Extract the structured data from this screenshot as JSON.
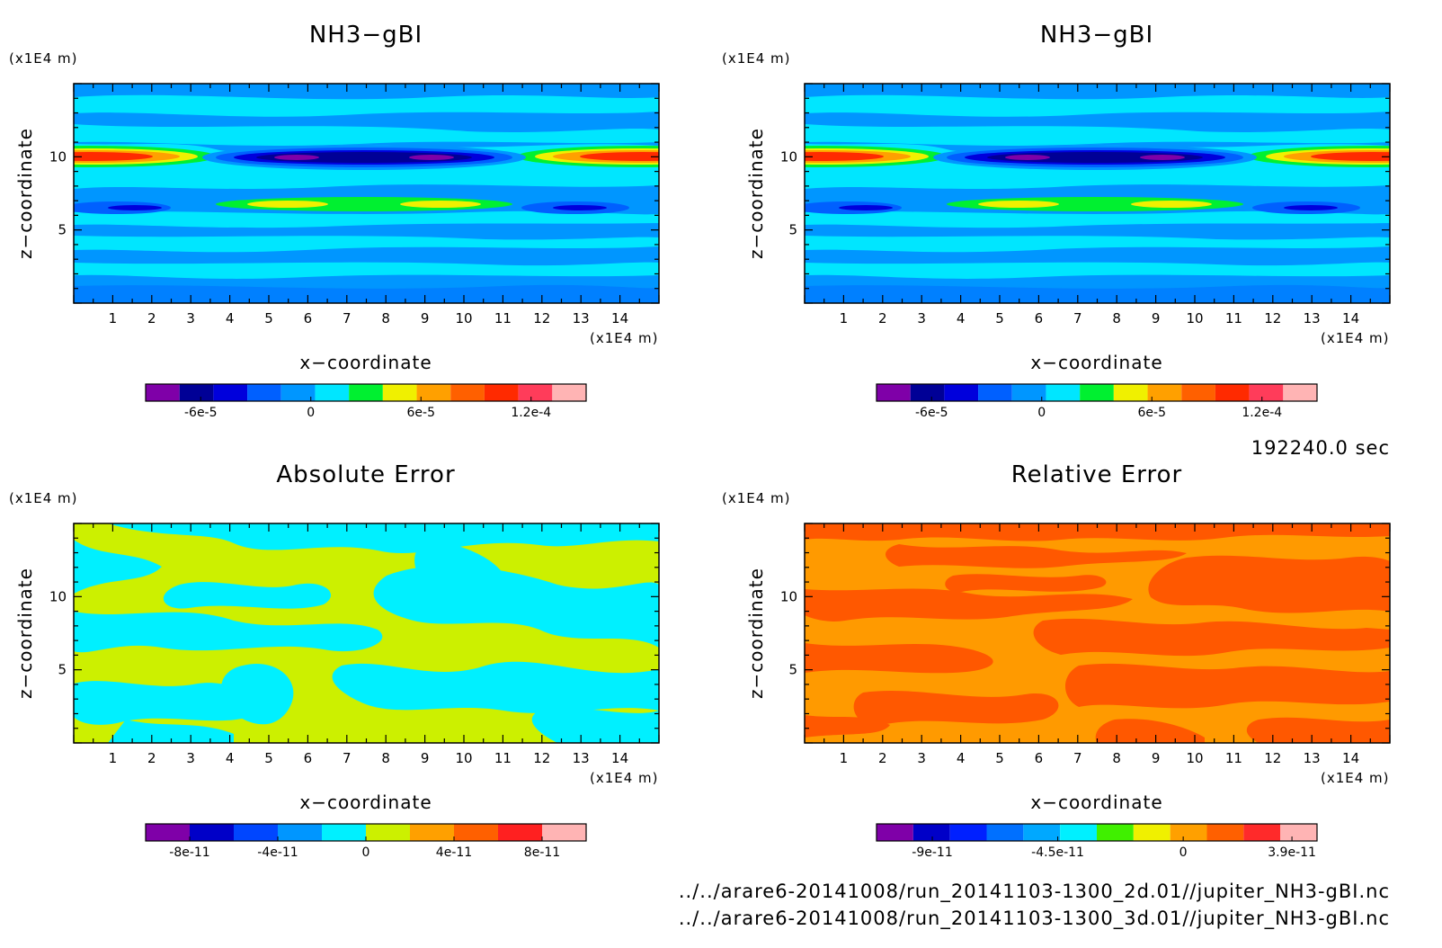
{
  "chart_data": [
    {
      "type": "heatmap",
      "title": "NH3−gBI",
      "xlabel": "x−coordinate",
      "ylabel": "z−coordinate",
      "x_unit": "(x1E4 m)",
      "y_unit": "(x1E4 m)",
      "xlim": [
        0,
        15
      ],
      "ylim": [
        0,
        15
      ],
      "x_ticks": [
        "1",
        "2",
        "3",
        "4",
        "5",
        "6",
        "7",
        "8",
        "9",
        "10",
        "11",
        "12",
        "13",
        "14"
      ],
      "y_ticks": [
        "5",
        "10"
      ],
      "colorbar": {
        "levels": [
          -9e-05,
          -7.5e-05,
          -6e-05,
          -4.5e-05,
          -3e-05,
          -1.5e-05,
          0,
          1.5e-05,
          3e-05,
          4.5e-05,
          6e-05,
          7.5e-05,
          9e-05,
          0.000105,
          0.00012,
          0.000135,
          0.00015
        ],
        "colors": [
          "#7f00a8",
          "#000096",
          "#0000dc",
          "#0060ff",
          "#0096ff",
          "#00e6ff",
          "#00f030",
          "#f0f000",
          "#ffa000",
          "#ff6000",
          "#ff2a00",
          "#ff3c5a",
          "#ffb4b4"
        ],
        "tick_labels": [
          "-6e-5",
          "0",
          "6e-5",
          "1.2e-4"
        ]
      },
      "background_level": 8e-06,
      "features": [
        {
          "x": 1.0,
          "z": 10.0,
          "value": 0.00013,
          "note": "left high band"
        },
        {
          "x": 14.0,
          "z": 10.0,
          "value": 0.00013,
          "note": "right high band"
        },
        {
          "x": 7.5,
          "z": 10.0,
          "value": -8.5e-05,
          "note": "central low band"
        },
        {
          "x": 7.5,
          "z": 6.6,
          "value": 6e-05,
          "note": "central high band"
        },
        {
          "x": 2.0,
          "z": 6.4,
          "value": -5e-05,
          "note": "left low band"
        },
        {
          "x": 13.0,
          "z": 6.4,
          "value": -5e-05,
          "note": "right low band"
        }
      ]
    },
    {
      "type": "heatmap",
      "title": "NH3−gBI",
      "xlabel": "x−coordinate",
      "ylabel": "z−coordinate",
      "x_unit": "(x1E4 m)",
      "y_unit": "(x1E4 m)",
      "xlim": [
        0,
        15
      ],
      "ylim": [
        0,
        15
      ],
      "x_ticks": [
        "1",
        "2",
        "3",
        "4",
        "5",
        "6",
        "7",
        "8",
        "9",
        "10",
        "11",
        "12",
        "13",
        "14"
      ],
      "y_ticks": [
        "5",
        "10"
      ],
      "colorbar": {
        "levels": [
          -9e-05,
          -7.5e-05,
          -6e-05,
          -4.5e-05,
          -3e-05,
          -1.5e-05,
          0,
          1.5e-05,
          3e-05,
          4.5e-05,
          6e-05,
          7.5e-05,
          9e-05,
          0.000105,
          0.00012,
          0.000135,
          0.00015
        ],
        "colors": [
          "#7f00a8",
          "#000096",
          "#0000dc",
          "#0060ff",
          "#0096ff",
          "#00e6ff",
          "#00f030",
          "#f0f000",
          "#ffa000",
          "#ff6000",
          "#ff2a00",
          "#ff3c5a",
          "#ffb4b4"
        ],
        "tick_labels": [
          "-6e-5",
          "0",
          "6e-5",
          "1.2e-4"
        ]
      },
      "background_level": 8e-06,
      "features": [
        {
          "x": 1.0,
          "z": 10.0,
          "value": 0.00013
        },
        {
          "x": 14.0,
          "z": 10.0,
          "value": 0.00013
        },
        {
          "x": 7.5,
          "z": 10.0,
          "value": -8.5e-05
        },
        {
          "x": 7.5,
          "z": 6.6,
          "value": 6e-05
        },
        {
          "x": 2.0,
          "z": 6.4,
          "value": -5e-05
        },
        {
          "x": 13.0,
          "z": 6.4,
          "value": -5e-05
        }
      ]
    },
    {
      "type": "heatmap",
      "title": "Absolute Error",
      "xlabel": "x−coordinate",
      "ylabel": "z−coordinate",
      "x_unit": "(x1E4 m)",
      "y_unit": "(x1E4 m)",
      "xlim": [
        0,
        15
      ],
      "ylim": [
        0,
        15
      ],
      "x_ticks": [
        "1",
        "2",
        "3",
        "4",
        "5",
        "6",
        "7",
        "8",
        "9",
        "10",
        "11",
        "12",
        "13",
        "14"
      ],
      "y_ticks": [
        "5",
        "10"
      ],
      "colorbar": {
        "levels": [
          -1e-10,
          -8e-11,
          -6e-11,
          -4e-11,
          -2e-11,
          0,
          2e-11,
          4e-11,
          6e-11,
          8e-11,
          1e-10
        ],
        "colors": [
          "#7f00a8",
          "#0000c8",
          "#0046ff",
          "#0096ff",
          "#00f0ff",
          "#ccf000",
          "#ffa000",
          "#ff6000",
          "#ff2020",
          "#ffb4b4"
        ],
        "tick_labels": [
          "-8e-11",
          "-4e-11",
          "0",
          "4e-11",
          "8e-11"
        ]
      },
      "values_present": [
        "cyan (-2e-11 to 0)",
        "yellow-green (0 to 2e-11)"
      ]
    },
    {
      "type": "heatmap",
      "title": "Relative Error",
      "xlabel": "x−coordinate",
      "ylabel": "z−coordinate",
      "x_unit": "(x1E4 m)",
      "y_unit": "(x1E4 m)",
      "xlim": [
        0,
        15
      ],
      "ylim": [
        0,
        15
      ],
      "x_ticks": [
        "1",
        "2",
        "3",
        "4",
        "5",
        "6",
        "7",
        "8",
        "9",
        "10",
        "11",
        "12",
        "13",
        "14"
      ],
      "y_ticks": [
        "5",
        "10"
      ],
      "colorbar": {
        "segments": [
          "#7f00a8",
          "#0000c8",
          "#0020ff",
          "#0070ff",
          "#00a8ff",
          "#00f0ff",
          "#40f000",
          "#f0f000",
          "#ffa000",
          "#ff6000",
          "#ff2a2a",
          "#ffb4b4"
        ],
        "tick_labels": [
          "-9e-11",
          "-4.5e-11",
          "0",
          "3.9e-11"
        ]
      },
      "values_present": [
        "orange",
        "red-orange"
      ]
    }
  ],
  "info": {
    "time": "192240.0 sec",
    "file1": "../../arare6-20141008/run_20141103-1300_2d.01//jupiter_NH3-gBI.nc",
    "file2": "../../arare6-20141008/run_20141103-1300_3d.01//jupiter_NH3-gBI.nc"
  }
}
